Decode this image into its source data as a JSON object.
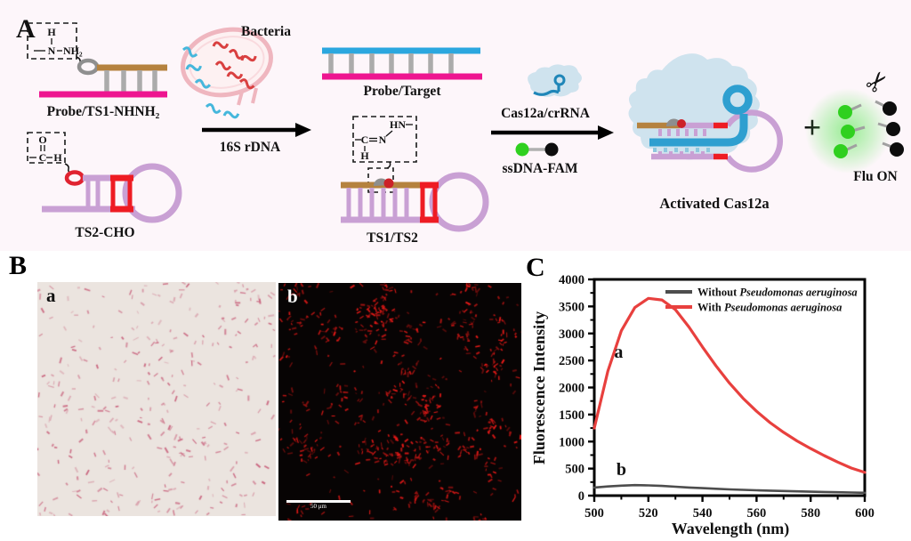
{
  "panel_a": {
    "label": "A",
    "background_color": "#fdf6fa",
    "hydrazine": {
      "h": "H",
      "n": "N",
      "nh2": "NH₂"
    },
    "probe_ts1": {
      "label": "Probe/TS1-NHNH₂"
    },
    "aldehyde": {
      "o": "O",
      "c": "C",
      "h": "H"
    },
    "ts2_cho": {
      "label": "TS2-CHO"
    },
    "bacteria": {
      "label": "Bacteria"
    },
    "arrow1": {
      "label": "16S rDNA"
    },
    "probe_target": {
      "label": "Probe/Target"
    },
    "hydrazone": {
      "hn": "HN",
      "c": "C",
      "n": "N",
      "h": "H"
    },
    "ts1_ts2": {
      "label": "TS1/TS2"
    },
    "cas12a": {
      "label": "Cas12a/crRNA"
    },
    "ssdna_fam": {
      "label": "ssDNA-FAM"
    },
    "activated_cas12a": {
      "label": "Activated Cas12a"
    },
    "plus_sign": "+",
    "flu_on": {
      "label": "Flu ON"
    }
  },
  "panel_b": {
    "label": "B",
    "micrograph_a": {
      "label": "a",
      "bg": "#ebe4df",
      "rgb": [
        203,
        105,
        130
      ],
      "count": 320,
      "len_min": 2.5,
      "len_var": 4.5,
      "clusters": 0
    },
    "micrograph_b": {
      "label": "b",
      "bg": "#070404",
      "rgb": [
        232,
        26,
        24
      ],
      "count": 170,
      "len_min": 2,
      "len_var": 4,
      "clusters": 72,
      "scale_bar": "50 μm"
    }
  },
  "panel_c": {
    "label": "C"
  },
  "chart_data": {
    "type": "line",
    "title": "",
    "xlabel": "Wavelength (nm)",
    "ylabel": "Fluorescence Intensity",
    "xlim": [
      500,
      600
    ],
    "ylim": [
      0,
      4000
    ],
    "x_ticks": [
      500,
      520,
      540,
      560,
      580,
      600
    ],
    "x_minor_ticks": [
      510,
      530,
      550,
      570,
      590
    ],
    "y_ticks": [
      0,
      500,
      1000,
      1500,
      2000,
      2500,
      3000,
      3500,
      4000
    ],
    "y_minor_ticks": [
      250,
      750,
      1250,
      1750,
      2250,
      2750,
      3250,
      3750
    ],
    "grid": false,
    "frame": "full-box",
    "legend_position": "top-right-inside",
    "x": [
      500,
      505,
      510,
      515,
      520,
      525,
      530,
      535,
      540,
      545,
      550,
      555,
      560,
      565,
      570,
      575,
      580,
      585,
      590,
      595,
      600
    ],
    "series": [
      {
        "name": "Without Pseudomonas aeruginosa",
        "name_prefix": "Without ",
        "species": "Pseudomonas aeruginosa",
        "color": "#4d4d4d",
        "line_width": 2.6,
        "values": [
          150,
          170,
          185,
          195,
          190,
          180,
          165,
          150,
          138,
          126,
          116,
          107,
          99,
          92,
          86,
          79,
          73,
          67,
          62,
          57,
          52
        ]
      },
      {
        "name": "With Pseudomonas aeruginosa",
        "name_prefix": "With ",
        "species": "Pseudomonas aeruginosa",
        "color": "#e8403e",
        "line_width": 3.2,
        "values": [
          1250,
          2300,
          3050,
          3480,
          3650,
          3620,
          3440,
          3120,
          2750,
          2400,
          2080,
          1800,
          1560,
          1350,
          1170,
          1010,
          870,
          740,
          620,
          510,
          430
        ]
      }
    ],
    "annotations": [
      {
        "text": "a",
        "x": 509,
        "y": 2550
      },
      {
        "text": "b",
        "x": 510,
        "y": 380
      }
    ]
  },
  "colors": {
    "magenta_strand": "#ee1590",
    "brown_strand": "#b5823f",
    "plum_strand": "#c9a0d4",
    "red_segment": "#ee1c23",
    "blue_strand": "#2ba7df",
    "crRNA_blue": "#1f86b8",
    "cas_blob": "#cfe3ee",
    "fam_green": "#2fd01f",
    "quencher_black": "#0d0d0d",
    "gray_rung": "#ababab",
    "curve_red": "#e8403e",
    "curve_gray": "#4d4d4d"
  }
}
